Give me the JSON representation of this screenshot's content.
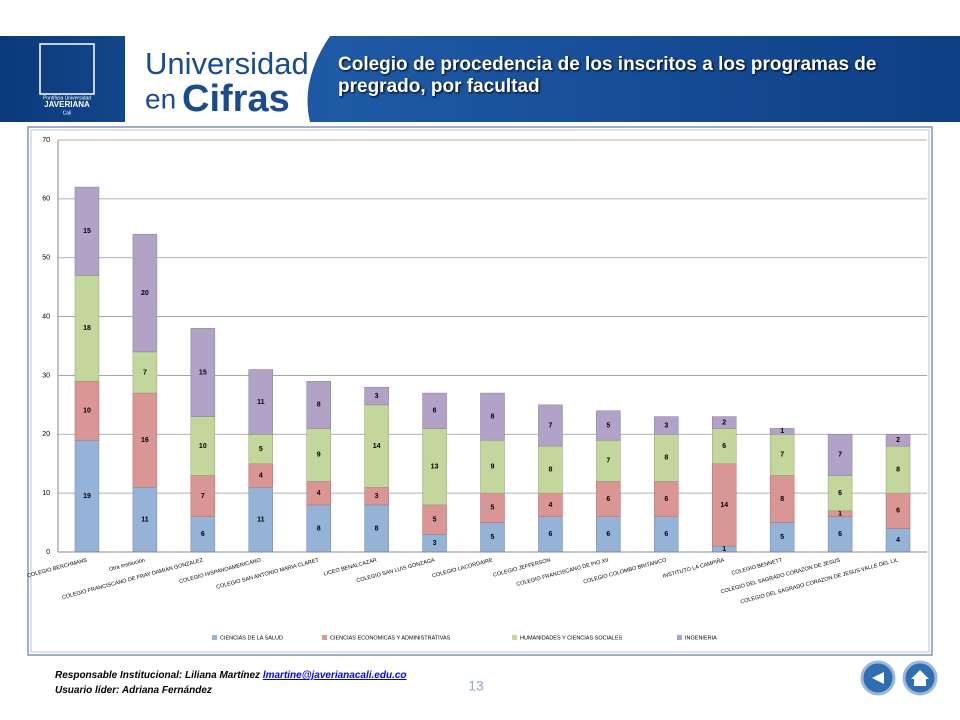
{
  "header": {
    "logo_top": "Pontificia Universidad",
    "logo_name": "JAVERIANA",
    "logo_city": "Cali",
    "brand_1": "Universidad",
    "brand_2a": "en",
    "brand_2b": "Cifras",
    "title": "Colegio de procedencia de los inscritos a los programas de pregrado, por facultad"
  },
  "chart_data": {
    "type": "stacked_bar",
    "categories": [
      "COLEGIO BERCHMANS",
      "Otra Institución",
      "COLEGIO FRANCISCANO DE FRAY DAMIAN GONZALEZ",
      "COLEGIO HISPANOAMERICANO",
      "COLEGIO SAN ANTONIO MARIA CLARET",
      "LICEO BENALCAZAR",
      "COLEGIO SAN LUIS GONZAGA",
      "COLEGIO LACORDAIRE",
      "COLEGIO JEFFERSON",
      "COLEGIO FRANCISCANO DE PIO XII",
      "COLEGIO COLOMBO BRITANICO",
      "INSTITUTO LA CAMPIÑA",
      "COLEGIO BENNETT",
      "COLEGIO DEL SAGRADO CORAZON DE JESUS",
      "COLEGIO DEL SAGRADO CORAZON DE JESUS VALLE DEL LIL"
    ],
    "series": [
      {
        "name": "CIENCIAS DE LA SALUD",
        "color": "#95b3d7",
        "values": [
          19,
          11,
          6,
          11,
          8,
          8,
          3,
          5,
          6,
          6,
          6,
          1,
          5,
          6,
          4
        ]
      },
      {
        "name": "CIENCIAS ECONOMICAS Y ADMINISTRATIVAS",
        "color": "#d99694",
        "values": [
          10,
          16,
          7,
          4,
          4,
          3,
          5,
          5,
          4,
          6,
          6,
          14,
          8,
          1,
          6
        ]
      },
      {
        "name": "HUMANIDADES Y CIENCIAS SOCIALES",
        "color": "#c3d69b",
        "values": [
          18,
          7,
          10,
          5,
          9,
          14,
          13,
          9,
          8,
          7,
          8,
          6,
          7,
          6,
          8
        ]
      },
      {
        "name": "INGENIERIA",
        "color": "#b3a2c7",
        "values": [
          15,
          20,
          15,
          11,
          8,
          3,
          6,
          8,
          7,
          5,
          3,
          2,
          1,
          7,
          2
        ]
      }
    ],
    "ylim": [
      0,
      70
    ],
    "yticks": [
      0,
      10,
      20,
      30,
      40,
      50,
      60,
      70
    ],
    "grid": true,
    "legend": "bottom"
  },
  "footer": {
    "responsible": "Responsable Institucional: Liliana Martínez",
    "email": "lmartine@javerianacali.edu.co",
    "leader": "Usuario líder: Adriana Fernández",
    "page": "13"
  }
}
